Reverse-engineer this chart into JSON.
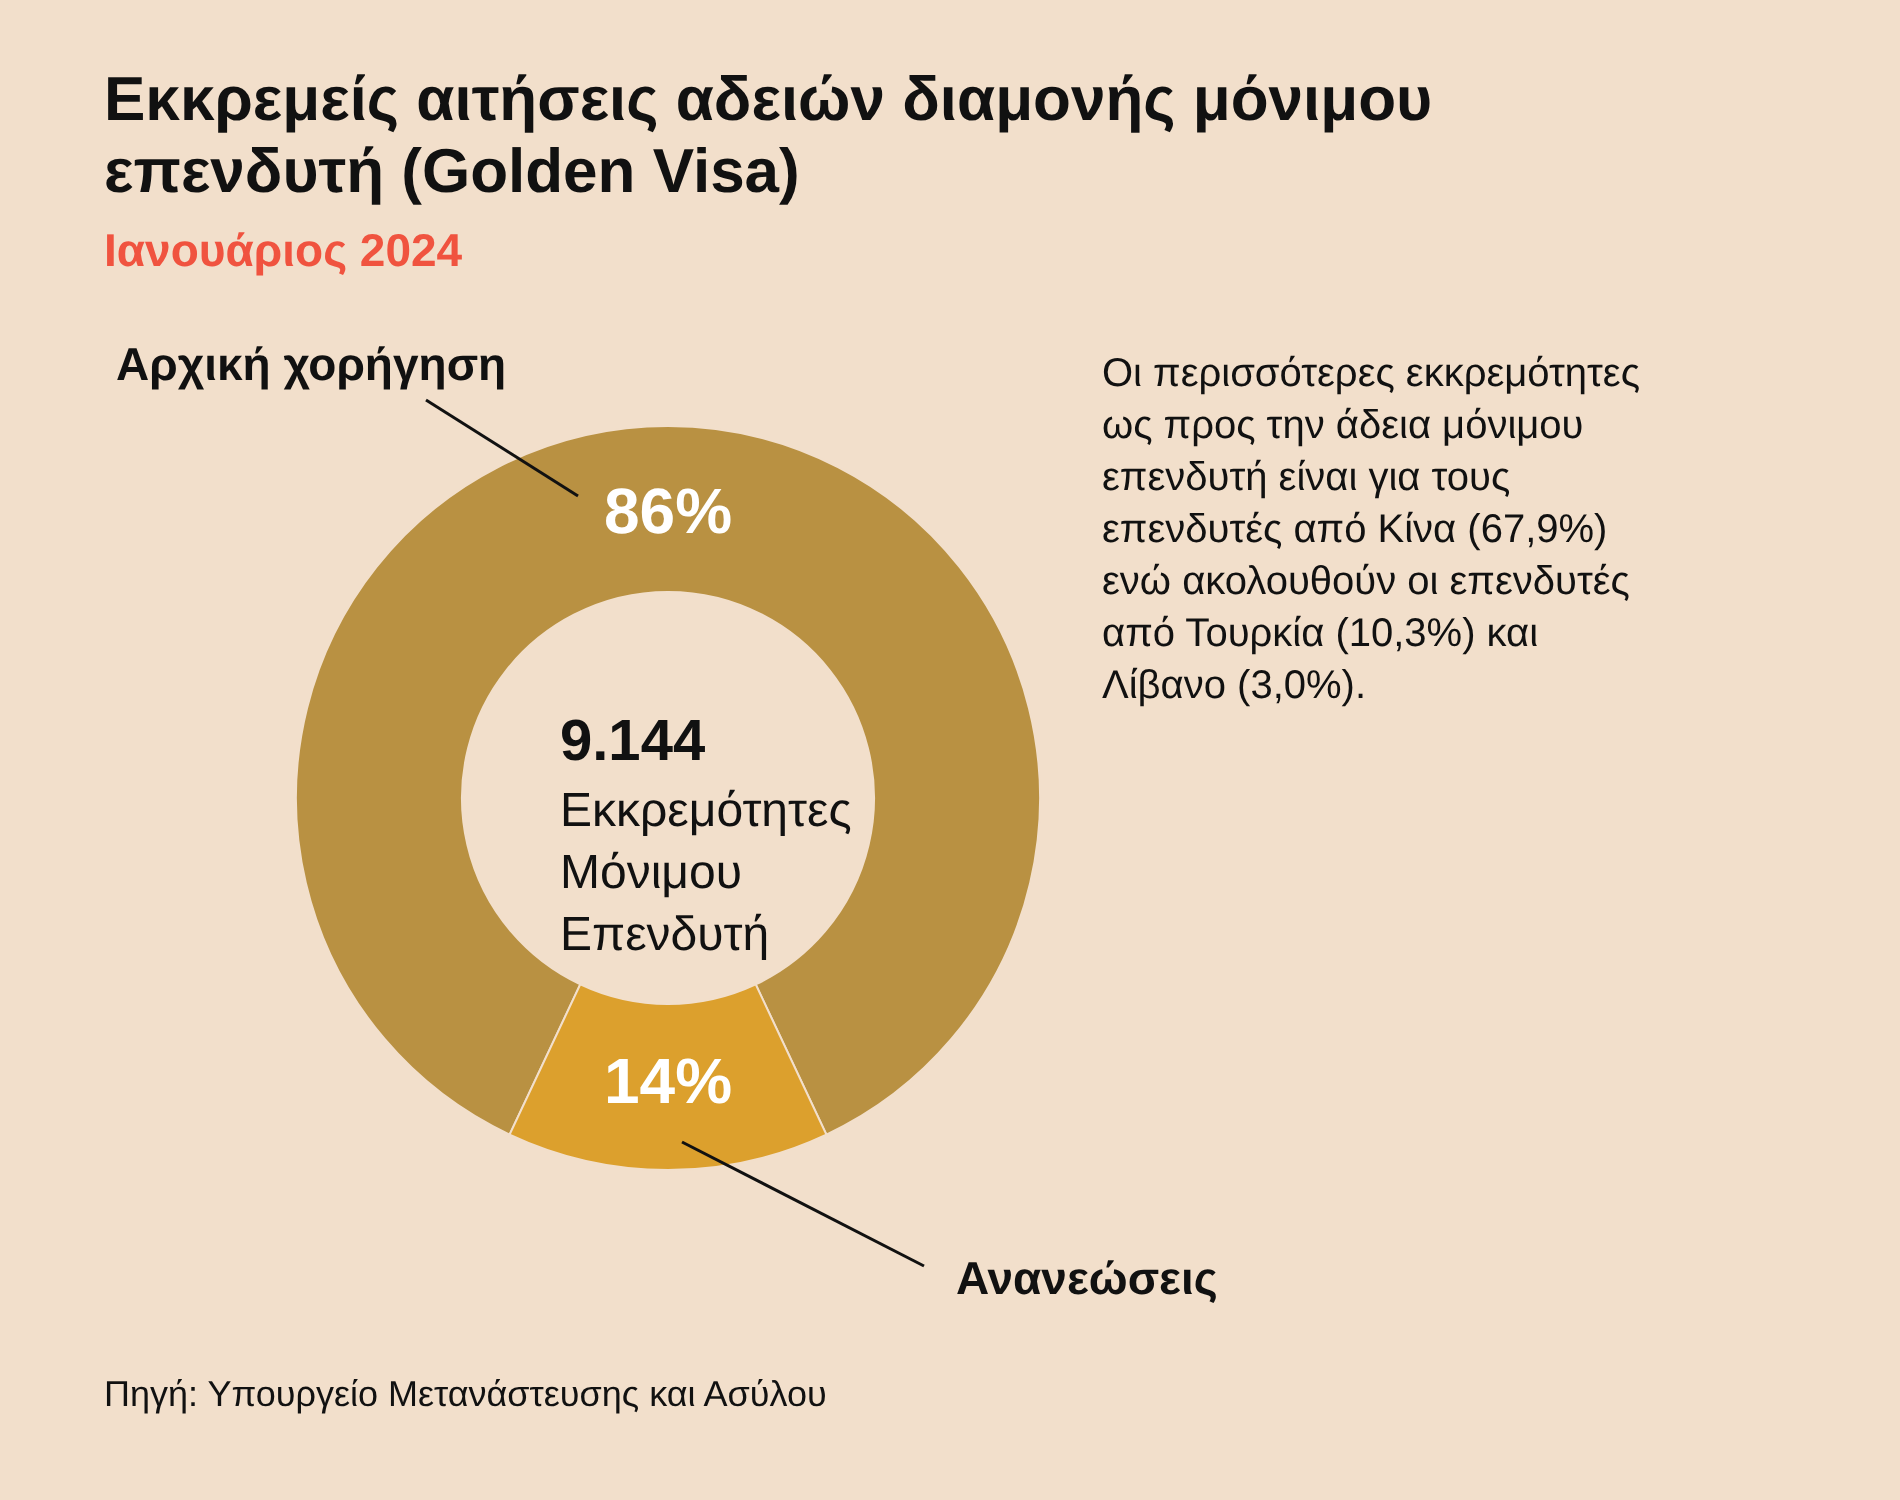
{
  "chart_data": {
    "type": "donut",
    "title": "Εκκρεμείς αιτήσεις αδειών διαμονής μόνιμου επενδυτή (Golden Visa)",
    "subtitle": "Ιανουάριος 2024",
    "categories": [
      "Αρχική χορήγηση",
      "Ανανεώσεις"
    ],
    "values": [
      86,
      14
    ],
    "colors": [
      "#b99142",
      "#dca02d"
    ],
    "value_labels": [
      "86%",
      "14%"
    ],
    "annotations": [
      "9.144",
      "Εκκρεμότητες Μόνιμου Επενδυτή",
      "Οι περισσότερες εκκρεμότητες ως προς την άδεια μόνιμου επενδυτή είναι για τους επενδυτές από Κίνα (67,9%) ενώ ακολουθούν οι επενδυτές από Τουρκία (10,3%) και Λίβανο (3,0%).",
      "Πηγή: Υπουργείο Μετανάστευσης και Ασύλου"
    ]
  }
}
